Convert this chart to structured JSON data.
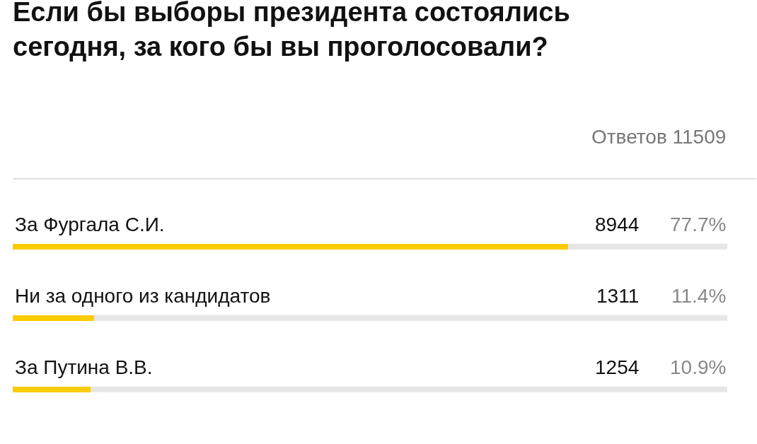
{
  "chart_data": {
    "type": "bar",
    "orientation": "horizontal",
    "title": "Если бы выборы президента состоялись сегодня, за кого бы вы проголосовали?",
    "subtitle": "Ответов 11509",
    "categories": [
      "За Фургала С.И.",
      "Ни за одного из кандидатов",
      "За Путина В.В."
    ],
    "values": [
      8944,
      1311,
      1254
    ],
    "color": "#fccb00",
    "xlim": [
      0,
      11509
    ],
    "data_labels": true,
    "annotations": [
      "77.7%",
      "11.4%",
      "10.9%"
    ],
    "grid": false,
    "legend": false
  }
}
